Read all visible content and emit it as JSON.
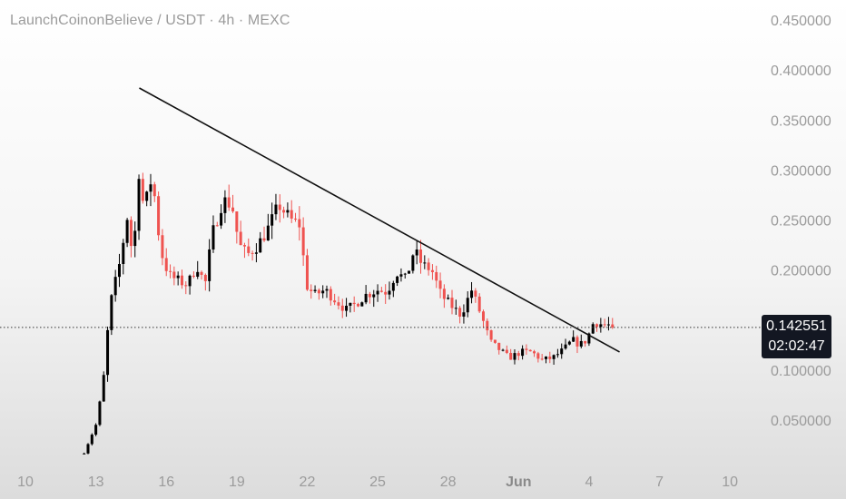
{
  "chart_data": {
    "type": "candlestick",
    "title": "LaunchCoinonBelieve / USDT · 4h · MEXC",
    "x_tick_labels": [
      "10",
      "13",
      "16",
      "19",
      "22",
      "25",
      "28",
      "Jun",
      "4",
      "7",
      "10"
    ],
    "y_tick_labels": [
      "0.050000",
      "0.100000",
      "0.150000",
      "0.200000",
      "0.250000",
      "0.300000",
      "0.350000",
      "0.400000",
      "0.450000"
    ],
    "y_ticks": [
      0.05,
      0.1,
      0.15,
      0.2,
      0.25,
      0.3,
      0.35,
      0.4,
      0.45
    ],
    "ylim": [
      0.0,
      0.47
    ],
    "x_range_days": [
      10.0,
      41.0
    ],
    "x_axis_note": "day of month; May 10 → Jun 10 (Jun 1 = day 32)",
    "current_price": 0.142551,
    "current_price_label": "0.142551",
    "countdown_label": "02:02:47",
    "up_color": "#000000",
    "down_color": "#ef5350",
    "trendline": {
      "start": [
        14.85,
        0.382
      ],
      "end": [
        35.3,
        0.118
      ]
    },
    "key_points": [
      {
        "x": 12.5,
        "y": 0.017
      },
      {
        "x": 13.0,
        "y": 0.045
      },
      {
        "x": 13.3,
        "y": 0.085
      },
      {
        "x": 13.6,
        "y": 0.165
      },
      {
        "x": 14.0,
        "y": 0.205
      },
      {
        "x": 14.35,
        "y": 0.255
      },
      {
        "x": 14.6,
        "y": 0.205
      },
      {
        "x": 14.8,
        "y": 0.305
      },
      {
        "x": 15.05,
        "y": 0.26
      },
      {
        "x": 15.4,
        "y": 0.295
      },
      {
        "x": 15.75,
        "y": 0.22
      },
      {
        "x": 16.1,
        "y": 0.195
      },
      {
        "x": 16.45,
        "y": 0.19
      },
      {
        "x": 16.9,
        "y": 0.185
      },
      {
        "x": 17.3,
        "y": 0.205
      },
      {
        "x": 17.65,
        "y": 0.185
      },
      {
        "x": 17.95,
        "y": 0.235
      },
      {
        "x": 18.4,
        "y": 0.27
      },
      {
        "x": 18.8,
        "y": 0.265
      },
      {
        "x": 19.1,
        "y": 0.225
      },
      {
        "x": 19.45,
        "y": 0.215
      },
      {
        "x": 19.9,
        "y": 0.225
      },
      {
        "x": 20.3,
        "y": 0.24
      },
      {
        "x": 20.8,
        "y": 0.265
      },
      {
        "x": 21.3,
        "y": 0.25
      },
      {
        "x": 21.7,
        "y": 0.245
      },
      {
        "x": 21.95,
        "y": 0.185
      },
      {
        "x": 22.3,
        "y": 0.175
      },
      {
        "x": 22.75,
        "y": 0.18
      },
      {
        "x": 23.2,
        "y": 0.17
      },
      {
        "x": 23.65,
        "y": 0.16
      },
      {
        "x": 24.0,
        "y": 0.165
      },
      {
        "x": 24.5,
        "y": 0.175
      },
      {
        "x": 25.0,
        "y": 0.18
      },
      {
        "x": 25.4,
        "y": 0.178
      },
      {
        "x": 25.8,
        "y": 0.198
      },
      {
        "x": 26.2,
        "y": 0.19
      },
      {
        "x": 26.55,
        "y": 0.22
      },
      {
        "x": 26.9,
        "y": 0.205
      },
      {
        "x": 27.3,
        "y": 0.2
      },
      {
        "x": 27.7,
        "y": 0.175
      },
      {
        "x": 28.1,
        "y": 0.165
      },
      {
        "x": 28.55,
        "y": 0.155
      },
      {
        "x": 29.0,
        "y": 0.18
      },
      {
        "x": 29.4,
        "y": 0.155
      },
      {
        "x": 29.8,
        "y": 0.128
      },
      {
        "x": 30.2,
        "y": 0.12
      },
      {
        "x": 30.6,
        "y": 0.112
      },
      {
        "x": 31.1,
        "y": 0.118
      },
      {
        "x": 31.55,
        "y": 0.118
      },
      {
        "x": 32.0,
        "y": 0.11
      },
      {
        "x": 32.45,
        "y": 0.112
      },
      {
        "x": 32.9,
        "y": 0.12
      },
      {
        "x": 33.3,
        "y": 0.13
      },
      {
        "x": 33.6,
        "y": 0.125
      },
      {
        "x": 33.9,
        "y": 0.13
      },
      {
        "x": 34.2,
        "y": 0.148
      },
      {
        "x": 34.5,
        "y": 0.146
      },
      {
        "x": 34.8,
        "y": 0.145
      },
      {
        "x": 35.0,
        "y": 0.1426
      }
    ]
  }
}
